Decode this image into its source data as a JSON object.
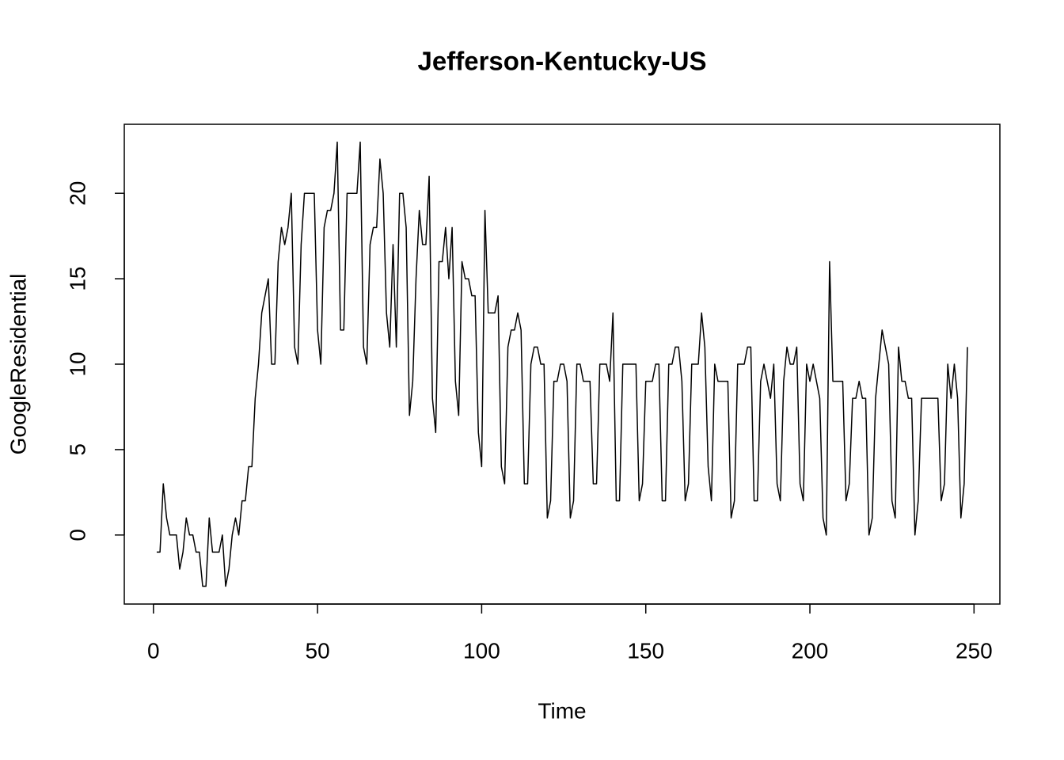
{
  "chart_data": {
    "type": "line",
    "title": "Jefferson-Kentucky-US",
    "x_label": "Time",
    "y_label": "GoogleResidential",
    "xlim": [
      -8.88,
      257.88
    ],
    "ylim": [
      -4.04,
      24.04
    ],
    "xticks": [
      0,
      50,
      100,
      150,
      200,
      250
    ],
    "yticks": [
      0,
      5,
      10,
      15,
      20
    ],
    "x": [
      1,
      2,
      3,
      4,
      5,
      6,
      7,
      8,
      9,
      10,
      11,
      12,
      13,
      14,
      15,
      16,
      17,
      18,
      19,
      20,
      21,
      22,
      23,
      24,
      25,
      26,
      27,
      28,
      29,
      30,
      31,
      32,
      33,
      34,
      35,
      36,
      37,
      38,
      39,
      40,
      41,
      42,
      43,
      44,
      45,
      46,
      47,
      48,
      49,
      50,
      51,
      52,
      53,
      54,
      55,
      56,
      57,
      58,
      59,
      60,
      61,
      62,
      63,
      64,
      65,
      66,
      67,
      68,
      69,
      70,
      71,
      72,
      73,
      74,
      75,
      76,
      77,
      78,
      79,
      80,
      81,
      82,
      83,
      84,
      85,
      86,
      87,
      88,
      89,
      90,
      91,
      92,
      93,
      94,
      95,
      96,
      97,
      98,
      99,
      100,
      101,
      102,
      103,
      104,
      105,
      106,
      107,
      108,
      109,
      110,
      111,
      112,
      113,
      114,
      115,
      116,
      117,
      118,
      119,
      120,
      121,
      122,
      123,
      124,
      125,
      126,
      127,
      128,
      129,
      130,
      131,
      132,
      133,
      134,
      135,
      136,
      137,
      138,
      139,
      140,
      141,
      142,
      143,
      144,
      145,
      146,
      147,
      148,
      149,
      150,
      151,
      152,
      153,
      154,
      155,
      156,
      157,
      158,
      159,
      160,
      161,
      162,
      163,
      164,
      165,
      166,
      167,
      168,
      169,
      170,
      171,
      172,
      173,
      174,
      175,
      176,
      177,
      178,
      179,
      180,
      181,
      182,
      183,
      184,
      185,
      186,
      187,
      188,
      189,
      190,
      191,
      192,
      193,
      194,
      195,
      196,
      197,
      198,
      199,
      200,
      201,
      202,
      203,
      204,
      205,
      206,
      207,
      208,
      209,
      210,
      211,
      212,
      213,
      214,
      215,
      216,
      217,
      218,
      219,
      220,
      221,
      222,
      223,
      224,
      225,
      226,
      227,
      228,
      229,
      230,
      231,
      232,
      233,
      234,
      235,
      236,
      237,
      238,
      239,
      240,
      241,
      242,
      243,
      244,
      245,
      246,
      247,
      248
    ],
    "series": [
      {
        "name": "GoogleResidential",
        "color": "#000000",
        "values": [
          -1,
          -1,
          3,
          1,
          0,
          0,
          0,
          -2,
          -1,
          1,
          0,
          0,
          -1,
          -1,
          -3,
          -3,
          1,
          -1,
          -1,
          -1,
          0,
          -3,
          -2,
          0,
          1,
          0,
          2,
          2,
          4,
          4,
          8,
          10,
          13,
          14,
          15,
          10,
          10,
          16,
          18,
          17,
          18,
          20,
          11,
          10,
          17,
          20,
          20,
          20,
          20,
          12,
          10,
          18,
          19,
          19,
          20,
          23,
          12,
          12,
          20,
          20,
          20,
          20,
          23,
          11,
          10,
          17,
          18,
          18,
          22,
          20,
          13,
          11,
          17,
          11,
          20,
          20,
          18,
          7,
          9,
          15,
          19,
          17,
          17,
          21,
          8,
          6,
          16,
          16,
          18,
          15,
          18,
          9,
          7,
          16,
          15,
          15,
          14,
          14,
          6,
          4,
          19,
          13,
          13,
          13,
          14,
          4,
          3,
          11,
          12,
          12,
          13,
          12,
          3,
          3,
          10,
          11,
          11,
          10,
          10,
          1,
          2,
          9,
          9,
          10,
          10,
          9,
          1,
          2,
          10,
          10,
          9,
          9,
          9,
          3,
          3,
          10,
          10,
          10,
          9,
          13,
          2,
          2,
          10,
          10,
          10,
          10,
          10,
          2,
          3,
          9,
          9,
          9,
          10,
          10,
          2,
          2,
          10,
          10,
          11,
          11,
          9,
          2,
          3,
          10,
          10,
          10,
          13,
          11,
          4,
          2,
          10,
          9,
          9,
          9,
          9,
          1,
          2,
          10,
          10,
          10,
          11,
          11,
          2,
          2,
          9,
          10,
          9,
          8,
          10,
          3,
          2,
          9,
          11,
          10,
          10,
          11,
          3,
          2,
          10,
          9,
          10,
          9,
          8,
          1,
          0,
          16,
          9,
          9,
          9,
          9,
          2,
          3,
          8,
          8,
          9,
          8,
          8,
          0,
          1,
          8,
          10,
          12,
          11,
          10,
          2,
          1,
          11,
          9,
          9,
          8,
          8,
          0,
          2,
          8,
          8,
          8,
          8,
          8,
          8,
          2,
          3,
          10,
          8,
          10,
          8,
          1,
          3,
          11
        ]
      }
    ]
  }
}
